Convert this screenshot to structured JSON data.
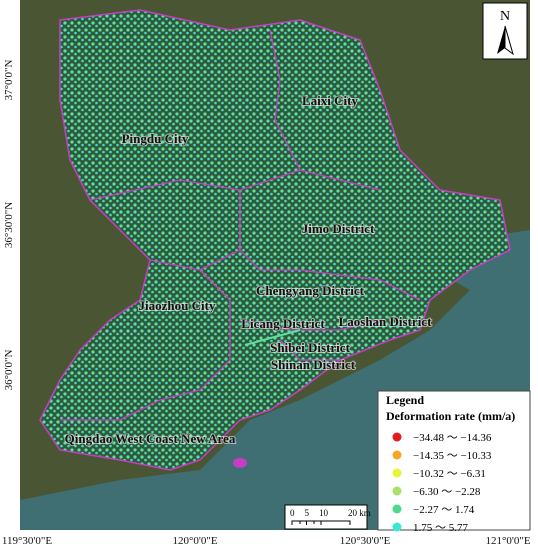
{
  "north_arrow": "N",
  "longitude_labels": [
    "119°30'0\"E",
    "120°0'0\"E",
    "120°30'0\"E",
    "121°0'0\"E"
  ],
  "latitude_labels": [
    "37°0'0\"N",
    "36°30'0\"N",
    "36°0'0\"N"
  ],
  "districts": [
    "Pingdu City",
    "Laixi City",
    "Jimo District",
    "Jiaozhou City",
    "Chengyang District",
    "Licang District",
    "Laoshan District",
    "Shibei District",
    "Shinan District",
    "Qingdao West Coast New Area"
  ],
  "legend": {
    "title": "Legend",
    "subtitle": "Deformation rate (mm/a)",
    "items": [
      {
        "label": "−34.48 ～ −14.36",
        "color": "#e41a1c"
      },
      {
        "label": "−14.35 ～ −10.33",
        "color": "#f5a623"
      },
      {
        "label": "−10.32 ～ −6.31",
        "color": "#e6f53a"
      },
      {
        "label": "−6.30 ～ −2.28",
        "color": "#a6e26a"
      },
      {
        "label": "−2.27 ～ 1.74",
        "color": "#4fd98a"
      },
      {
        "label": "1.75 ～ 5.77",
        "color": "#3be8d8"
      }
    ]
  },
  "scale_bar": {
    "labels": [
      "0",
      "5",
      "10",
      "20 km"
    ]
  }
}
